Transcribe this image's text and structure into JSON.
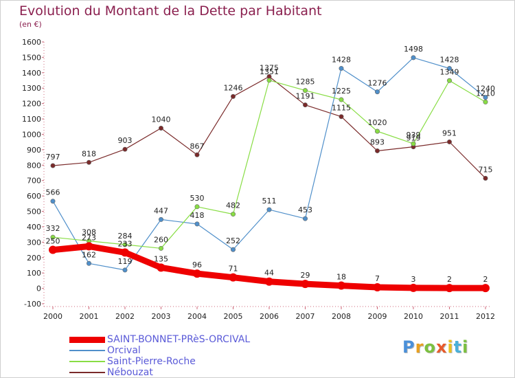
{
  "chart_data": {
    "type": "line",
    "title": "Evolution du Montant de la Dette par Habitant",
    "subtitle": "(en €)",
    "categories": [
      "2000",
      "2001",
      "2002",
      "2003",
      "2004",
      "2005",
      "2006",
      "2007",
      "2008",
      "2009",
      "2010",
      "2011",
      "2012"
    ],
    "ylim": [
      -100,
      1600
    ],
    "yticks": [
      -100,
      0,
      100,
      200,
      300,
      400,
      500,
      600,
      700,
      800,
      900,
      1000,
      1100,
      1200,
      1300,
      1400,
      1500,
      1600
    ],
    "grid": false,
    "legend_position": "bottom-left",
    "series": [
      {
        "name": "SAINT-BONNET-PRèS-ORCIVAL",
        "color": "#ee0000",
        "values": [
          250,
          273,
          233,
          135,
          96,
          71,
          44,
          29,
          18,
          7,
          3,
          2,
          2
        ]
      },
      {
        "name": "Orcival",
        "color": "#4f8fca",
        "values": [
          566,
          162,
          119,
          447,
          418,
          252,
          511,
          453,
          1428,
          1276,
          1498,
          1428,
          1240
        ]
      },
      {
        "name": "Saint-Pierre-Roche",
        "color": "#88dd44",
        "values": [
          332,
          308,
          284,
          260,
          530,
          482,
          1351,
          1285,
          1225,
          1020,
          939,
          1349,
          1210
        ]
      },
      {
        "name": "Nébouzat",
        "color": "#7a2a2a",
        "values": [
          797,
          818,
          903,
          1040,
          867,
          1246,
          1375,
          1191,
          1115,
          893,
          919,
          951,
          715
        ]
      }
    ],
    "data_labels": [
      {
        "series": 0,
        "labels": [
          "250",
          "273",
          "233",
          "135",
          "96",
          "71",
          "44",
          "29",
          "18",
          "7",
          "3",
          "2",
          "2"
        ]
      },
      {
        "series": 1,
        "labels": [
          "566",
          "162",
          "119",
          "447",
          "418",
          "252",
          "511",
          "453",
          "1428",
          "1276",
          "1498",
          "1428",
          "1240"
        ]
      },
      {
        "series": 2,
        "labels": [
          "332",
          "308",
          "284",
          "260",
          "530",
          "482",
          "1351",
          "1285",
          "1225",
          "1020",
          "939",
          "1349",
          "1210"
        ]
      },
      {
        "series": 3,
        "labels": [
          "797",
          "818",
          "903",
          "1040",
          "867",
          "1246",
          "1375",
          "1191",
          "1115",
          "893",
          "919",
          "951",
          "715"
        ]
      }
    ]
  },
  "logo": {
    "text": "Proxiti",
    "letters": [
      "P",
      "r",
      "o",
      "x",
      "i",
      "t",
      "i"
    ],
    "colors": [
      "#4a90d9",
      "#e8a020",
      "#7cc040",
      "#e85a2a",
      "#e8c020",
      "#4ab0d9",
      "#7cc040"
    ]
  }
}
